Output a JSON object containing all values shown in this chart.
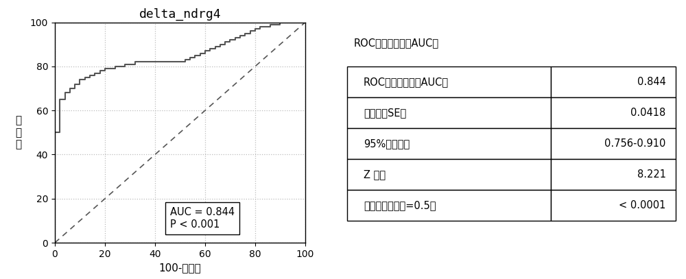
{
  "title": "delta_ndrg4",
  "xlabel": "100-特异性",
  "ylabel": "灵\n敏\n度",
  "auc_text": "AUC = 0.844\nP < 0.001",
  "table_title": "ROC曲线下面积（AUC）",
  "table_rows": [
    [
      "ROC曲线下面积（AUC）",
      "0.844"
    ],
    [
      "标准误（SE）",
      "0.0418"
    ],
    [
      "95%置信区间",
      "0.756-0.910"
    ],
    [
      "Z 检验",
      "8.221"
    ],
    [
      "显著水平（面积=0.5）",
      "< 0.0001"
    ]
  ],
  "roc_x": [
    0,
    0,
    2,
    2,
    4,
    4,
    6,
    6,
    8,
    8,
    10,
    10,
    12,
    12,
    14,
    14,
    16,
    16,
    18,
    18,
    20,
    20,
    24,
    24,
    28,
    28,
    32,
    32,
    36,
    36,
    40,
    40,
    44,
    44,
    48,
    48,
    52,
    52,
    54,
    54,
    56,
    56,
    58,
    58,
    60,
    60,
    62,
    62,
    64,
    64,
    66,
    66,
    68,
    68,
    70,
    70,
    72,
    72,
    74,
    74,
    76,
    76,
    78,
    78,
    80,
    80,
    82,
    82,
    84,
    84,
    86,
    86,
    88,
    88,
    90,
    90,
    92,
    92,
    94,
    94,
    96,
    96,
    98,
    98,
    100,
    100
  ],
  "roc_y": [
    0,
    50,
    50,
    65,
    65,
    68,
    68,
    70,
    70,
    72,
    72,
    74,
    74,
    75,
    75,
    76,
    76,
    77,
    77,
    78,
    78,
    79,
    79,
    80,
    80,
    81,
    81,
    82,
    82,
    82,
    82,
    82,
    82,
    82,
    82,
    82,
    82,
    83,
    83,
    84,
    84,
    85,
    85,
    86,
    86,
    87,
    87,
    88,
    88,
    89,
    89,
    90,
    90,
    91,
    91,
    92,
    92,
    93,
    93,
    94,
    94,
    95,
    95,
    96,
    96,
    97,
    97,
    98,
    98,
    98,
    98,
    99,
    99,
    99,
    99,
    100,
    100,
    100,
    100,
    100,
    100,
    100,
    100,
    100,
    100,
    100
  ],
  "line_color": "#555555",
  "diag_color": "#555555",
  "bg_color": "#ffffff",
  "grid_color": "#bbbbbb"
}
